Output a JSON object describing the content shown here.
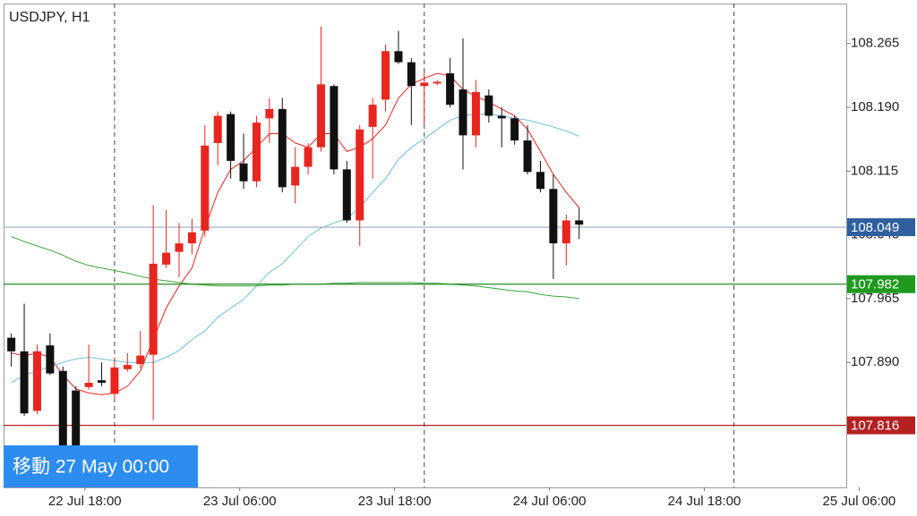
{
  "chart_data": {
    "type": "candlestick",
    "title": "USDJPY, H1",
    "annotation": "移動 27 May 00:00",
    "up_color": "#e8251f",
    "down_color": "#111111",
    "open": [
      107.919,
      107.903,
      107.833,
      107.91,
      107.88,
      107.857,
      107.861,
      107.869,
      107.853,
      107.882,
      107.888,
      107.899,
      108.005,
      108.02,
      108.03,
      108.045,
      108.148,
      108.182,
      108.124,
      108.103,
      108.177,
      108.188,
      108.098,
      108.12,
      108.143,
      108.215,
      108.117,
      108.057,
      108.167,
      108.199,
      108.256,
      108.243,
      108.215,
      108.218,
      108.23,
      108.211,
      108.157,
      108.204,
      108.18,
      108.177,
      108.151,
      108.114,
      108.094,
      108.03,
      108.057
    ],
    "high": [
      107.924,
      107.959,
      107.911,
      107.924,
      107.885,
      107.862,
      107.911,
      107.89,
      107.896,
      107.901,
      107.927,
      108.075,
      108.069,
      108.054,
      108.059,
      108.169,
      108.185,
      108.185,
      108.159,
      108.18,
      108.201,
      108.201,
      108.143,
      108.148,
      108.285,
      108.217,
      108.127,
      108.169,
      108.201,
      108.264,
      108.28,
      108.248,
      108.232,
      108.222,
      108.248,
      108.271,
      108.222,
      108.211,
      108.19,
      108.18,
      108.169,
      108.127,
      108.111,
      108.064,
      108.072
    ],
    "low": [
      107.885,
      107.827,
      107.829,
      107.875,
      107.785,
      107.78,
      107.858,
      107.862,
      107.847,
      107.879,
      107.883,
      107.822,
      108.001,
      107.99,
      108.017,
      108.038,
      108.122,
      108.106,
      108.094,
      108.096,
      108.148,
      108.09,
      108.077,
      108.111,
      108.138,
      108.111,
      108.054,
      108.027,
      108.106,
      108.185,
      108.241,
      108.169,
      108.169,
      108.216,
      108.19,
      108.117,
      108.143,
      108.172,
      108.143,
      108.146,
      108.111,
      108.09,
      107.988,
      108.004,
      108.035
    ],
    "close": [
      107.903,
      107.83,
      107.903,
      107.877,
      107.79,
      107.79,
      107.866,
      107.866,
      107.884,
      107.887,
      107.898,
      108.006,
      108.019,
      108.03,
      108.043,
      108.145,
      108.18,
      108.127,
      108.103,
      108.172,
      108.188,
      108.096,
      108.12,
      108.143,
      108.217,
      108.117,
      108.057,
      108.164,
      108.193,
      108.256,
      108.243,
      108.215,
      108.219,
      108.22,
      108.193,
      108.157,
      108.208,
      108.18,
      108.177,
      108.151,
      108.114,
      108.094,
      108.03,
      108.057,
      108.052
    ],
    "lines": [
      {
        "color": "#e8251f",
        "values": [
          107.901,
          107.898,
          107.901,
          107.896,
          107.875,
          107.859,
          107.854,
          107.852,
          107.854,
          107.862,
          107.88,
          107.917,
          107.954,
          107.98,
          108.001,
          108.048,
          108.09,
          108.117,
          108.127,
          108.143,
          108.159,
          108.159,
          108.148,
          108.143,
          108.159,
          108.159,
          108.138,
          108.143,
          108.153,
          108.169,
          108.201,
          108.217,
          108.224,
          108.23,
          108.227,
          108.211,
          108.203,
          108.196,
          108.188,
          108.18,
          108.164,
          108.138,
          108.111,
          108.09,
          108.072
        ]
      },
      {
        "color": "#6fc0dc",
        "values": [
          107.866,
          107.875,
          107.88,
          107.885,
          107.89,
          107.894,
          107.896,
          107.894,
          107.892,
          107.89,
          107.89,
          107.89,
          107.896,
          107.904,
          107.917,
          107.927,
          107.943,
          107.954,
          107.964,
          107.98,
          107.996,
          108.006,
          108.022,
          108.038,
          108.048,
          108.054,
          108.059,
          108.072,
          108.09,
          108.106,
          108.129,
          108.143,
          108.153,
          108.164,
          108.175,
          108.18,
          108.182,
          108.182,
          108.18,
          108.177,
          108.175,
          108.171,
          108.167,
          108.162,
          108.156
        ]
      },
      {
        "color": "#3aa63a",
        "values": [
          108.038,
          108.032,
          108.027,
          108.022,
          108.016,
          108.009,
          108.004,
          108.001,
          107.998,
          107.995,
          107.991,
          107.988,
          107.986,
          107.984,
          107.982,
          107.981,
          107.98,
          107.98,
          107.98,
          107.98,
          107.981,
          107.981,
          107.982,
          107.982,
          107.982,
          107.983,
          107.983,
          107.984,
          107.984,
          107.984,
          107.984,
          107.984,
          107.983,
          107.983,
          107.982,
          107.981,
          107.98,
          107.978,
          107.976,
          107.974,
          107.973,
          107.97,
          107.968,
          107.967,
          107.965
        ]
      }
    ],
    "levels": [
      {
        "value": 108.049,
        "color": "#2f5f9e",
        "line_color": "#98acc8"
      },
      {
        "value": 107.982,
        "color": "#1f9a1f",
        "line_color": "#1f8a1f"
      },
      {
        "value": 107.816,
        "color": "#b52020",
        "line_color": "#b52020"
      }
    ],
    "xlim": [
      -0.6,
      64.7
    ],
    "xticks": [
      {
        "value": 5.7,
        "label": "22 Jul 18:00"
      },
      {
        "value": 17.7,
        "label": "23 Jul 06:00"
      },
      {
        "value": 29.7,
        "label": "23 Jul 18:00"
      },
      {
        "value": 41.7,
        "label": "24 Jul 06:00"
      },
      {
        "value": 53.7,
        "label": "24 Jul 18:00"
      },
      {
        "value": 65.7,
        "label": "25 Jul 06:00"
      }
    ],
    "separators": [
      8,
      32,
      56
    ],
    "ylim": [
      107.743,
      108.312
    ],
    "yticks": [
      {
        "value": 107.89,
        "label": "107.890"
      },
      107.965,
      {
        "value": 108.04,
        "label": "108.040"
      },
      108.115,
      {
        "value": 108.19,
        "label": "108.190"
      },
      108.265
    ]
  }
}
